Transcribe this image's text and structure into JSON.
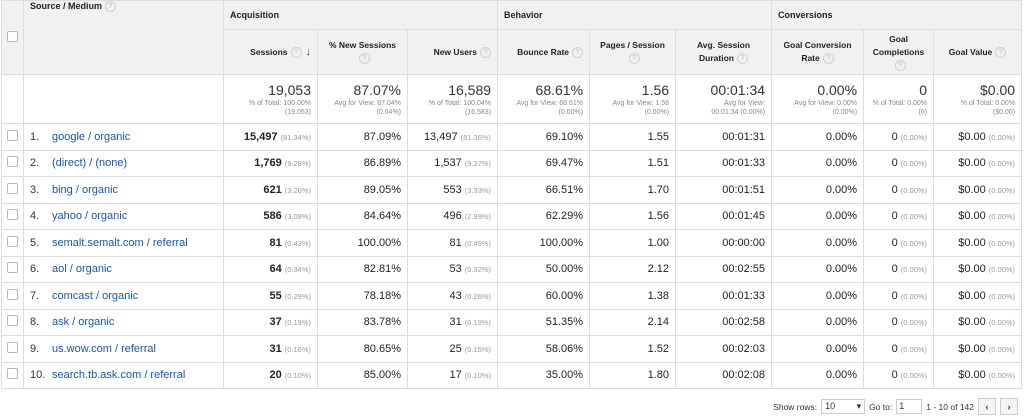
{
  "headers": {
    "source_medium": "Source / Medium",
    "groups": {
      "acquisition": "Acquisition",
      "behavior": "Behavior",
      "conversions": "Conversions"
    },
    "columns": {
      "sessions": "Sessions",
      "new_sessions": "% New Sessions",
      "new_users": "New Users",
      "bounce_rate": "Bounce Rate",
      "pages_session": "Pages / Session",
      "avg_duration": "Avg. Session Duration",
      "goal_conv_rate": "Goal Conversion Rate",
      "goal_completions": "Goal Completions",
      "goal_value": "Goal Value"
    },
    "help_glyph": "?",
    "sort_glyph": "↓"
  },
  "totals": {
    "sessions": {
      "value": "19,053",
      "sub1": "% of Total: 100.00%",
      "sub2": "(19,053)"
    },
    "new_sessions": {
      "value": "87.07%",
      "sub1": "Avg for View: 87.04%",
      "sub2": "(0.04%)"
    },
    "new_users": {
      "value": "16,589",
      "sub1": "% of Total: 100.04%",
      "sub2": "(16,583)"
    },
    "bounce_rate": {
      "value": "68.61%",
      "sub1": "Avg for View: 68.61%",
      "sub2": "(0.00%)"
    },
    "pages_session": {
      "value": "1.56",
      "sub1": "Avg for View: 1.56",
      "sub2": "(0.00%)"
    },
    "avg_duration": {
      "value": "00:01:34",
      "sub1": "Avg for View:",
      "sub2": "00:01:34 (0.00%)"
    },
    "goal_conv_rate": {
      "value": "0.00%",
      "sub1": "Avg for View: 0.00%",
      "sub2": "(0.00%)"
    },
    "goal_completions": {
      "value": "0",
      "sub1": "% of Total: 0.00%",
      "sub2": "(0)"
    },
    "goal_value": {
      "value": "$0.00",
      "sub1": "% of Total: 0.00%",
      "sub2": "($0.00)"
    }
  },
  "rows": [
    {
      "idx": "1.",
      "source": "google / organic",
      "sessions": "15,497",
      "sessions_pct": "(81.34%)",
      "new_sessions": "87.09%",
      "new_users": "13,497",
      "new_users_pct": "(81.36%)",
      "bounce": "69.10%",
      "pages": "1.55",
      "duration": "00:01:31",
      "gcr": "0.00%",
      "gc": "0",
      "gc_pct": "(0.00%)",
      "gv": "$0.00",
      "gv_pct": "(0.00%)"
    },
    {
      "idx": "2.",
      "source": "(direct) / (none)",
      "sessions": "1,769",
      "sessions_pct": "(9.28%)",
      "new_sessions": "86.89%",
      "new_users": "1,537",
      "new_users_pct": "(9.27%)",
      "bounce": "69.47%",
      "pages": "1.51",
      "duration": "00:01:33",
      "gcr": "0.00%",
      "gc": "0",
      "gc_pct": "(0.00%)",
      "gv": "$0.00",
      "gv_pct": "(0.00%)"
    },
    {
      "idx": "3.",
      "source": "bing / organic",
      "sessions": "621",
      "sessions_pct": "(3.26%)",
      "new_sessions": "89.05%",
      "new_users": "553",
      "new_users_pct": "(3.33%)",
      "bounce": "66.51%",
      "pages": "1.70",
      "duration": "00:01:51",
      "gcr": "0.00%",
      "gc": "0",
      "gc_pct": "(0.00%)",
      "gv": "$0.00",
      "gv_pct": "(0.00%)"
    },
    {
      "idx": "4.",
      "source": "yahoo / organic",
      "sessions": "586",
      "sessions_pct": "(3.08%)",
      "new_sessions": "84.64%",
      "new_users": "496",
      "new_users_pct": "(2.99%)",
      "bounce": "62.29%",
      "pages": "1.56",
      "duration": "00:01:45",
      "gcr": "0.00%",
      "gc": "0",
      "gc_pct": "(0.00%)",
      "gv": "$0.00",
      "gv_pct": "(0.00%)"
    },
    {
      "idx": "5.",
      "source": "semalt.semalt.com / referral",
      "sessions": "81",
      "sessions_pct": "(0.43%)",
      "new_sessions": "100.00%",
      "new_users": "81",
      "new_users_pct": "(0.49%)",
      "bounce": "100.00%",
      "pages": "1.00",
      "duration": "00:00:00",
      "gcr": "0.00%",
      "gc": "0",
      "gc_pct": "(0.00%)",
      "gv": "$0.00",
      "gv_pct": "(0.00%)"
    },
    {
      "idx": "6.",
      "source": "aol / organic",
      "sessions": "64",
      "sessions_pct": "(0.34%)",
      "new_sessions": "82.81%",
      "new_users": "53",
      "new_users_pct": "(0.32%)",
      "bounce": "50.00%",
      "pages": "2.12",
      "duration": "00:02:55",
      "gcr": "0.00%",
      "gc": "0",
      "gc_pct": "(0.00%)",
      "gv": "$0.00",
      "gv_pct": "(0.00%)"
    },
    {
      "idx": "7.",
      "source": "comcast / organic",
      "sessions": "55",
      "sessions_pct": "(0.29%)",
      "new_sessions": "78.18%",
      "new_users": "43",
      "new_users_pct": "(0.26%)",
      "bounce": "60.00%",
      "pages": "1.38",
      "duration": "00:01:33",
      "gcr": "0.00%",
      "gc": "0",
      "gc_pct": "(0.00%)",
      "gv": "$0.00",
      "gv_pct": "(0.00%)"
    },
    {
      "idx": "8.",
      "source": "ask / organic",
      "sessions": "37",
      "sessions_pct": "(0.19%)",
      "new_sessions": "83.78%",
      "new_users": "31",
      "new_users_pct": "(0.19%)",
      "bounce": "51.35%",
      "pages": "2.14",
      "duration": "00:02:58",
      "gcr": "0.00%",
      "gc": "0",
      "gc_pct": "(0.00%)",
      "gv": "$0.00",
      "gv_pct": "(0.00%)"
    },
    {
      "idx": "9.",
      "source": "us.wow.com / referral",
      "sessions": "31",
      "sessions_pct": "(0.16%)",
      "new_sessions": "80.65%",
      "new_users": "25",
      "new_users_pct": "(0.15%)",
      "bounce": "58.06%",
      "pages": "1.52",
      "duration": "00:02:03",
      "gcr": "0.00%",
      "gc": "0",
      "gc_pct": "(0.00%)",
      "gv": "$0.00",
      "gv_pct": "(0.00%)"
    },
    {
      "idx": "10.",
      "source": "search.tb.ask.com / referral",
      "sessions": "20",
      "sessions_pct": "(0.10%)",
      "new_sessions": "85.00%",
      "new_users": "17",
      "new_users_pct": "(0.10%)",
      "bounce": "35.00%",
      "pages": "1.80",
      "duration": "00:02:08",
      "gcr": "0.00%",
      "gc": "0",
      "gc_pct": "(0.00%)",
      "gv": "$0.00",
      "gv_pct": "(0.00%)"
    }
  ],
  "footer": {
    "show_rows_label": "Show rows:",
    "show_rows_value": "10",
    "dropdown_glyph": "▾",
    "goto_label": "Go to:",
    "goto_value": "1",
    "range": "1 - 10 of 142",
    "prev_glyph": "‹",
    "next_glyph": "›"
  },
  "colors": {
    "link": "#1a56a6",
    "header_bg": "#f1f1f1",
    "border": "#dddddd"
  }
}
